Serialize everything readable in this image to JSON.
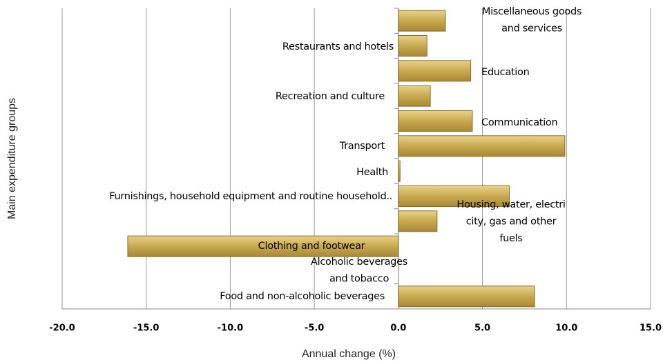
{
  "chart_data": {
    "type": "hbar",
    "xlabel": "Annual change (%)",
    "ylabel": "Main expenditure groups",
    "categories": [
      "Food and non-alcoholic beverages",
      "Alcoholic beverages\nand tobacco",
      "Clothing and footwear",
      "Housing, water, electri\ncity, gas and other\nfuels",
      "Furnishings, household equipment and routine household..",
      "Health",
      "Transport",
      "Communication",
      "Recreation and culture",
      "Education",
      "Restaurants and hotels",
      "Miscellaneous goods\nand services"
    ],
    "values": [
      8.1,
      0,
      -16.1,
      2.3,
      6.6,
      0.1,
      9.9,
      4.4,
      1.9,
      4.3,
      1.7,
      2.8
    ],
    "color": "#c9a94f",
    "xlim": [
      -20,
      15
    ],
    "xticks": [
      {
        "value": -20,
        "label": "-20.0"
      },
      {
        "value": -15,
        "label": "-15.0"
      },
      {
        "value": -10,
        "label": "-10.0"
      },
      {
        "value": -5,
        "label": "-5.0"
      },
      {
        "value": 0,
        "label": "0.0"
      },
      {
        "value": 5,
        "label": "5.0"
      },
      {
        "value": 10,
        "label": "10.0"
      },
      {
        "value": 15,
        "label": "15.0"
      }
    ],
    "grid": true
  }
}
